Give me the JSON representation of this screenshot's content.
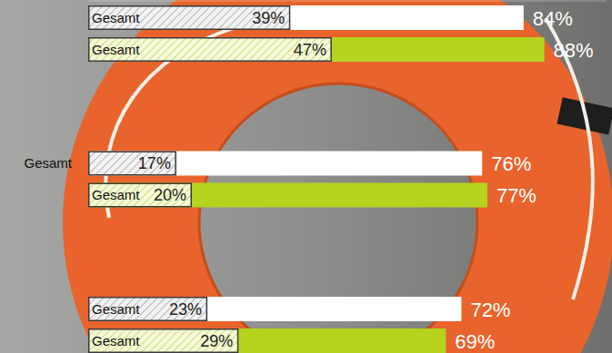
{
  "chart_data": {
    "type": "bar",
    "orientation": "horizontal",
    "data_labels": true,
    "tick_labels": false,
    "grid": false,
    "categories": [
      null,
      null,
      null
    ],
    "xlim": [
      0,
      100
    ],
    "series": [
      {
        "name": "Gesamt",
        "color": "#ffffff",
        "values": [
          84,
          76,
          72
        ],
        "value_labels": [
          "84%",
          "76%",
          "72%"
        ],
        "inner_values": [
          39,
          17,
          23
        ],
        "inner_value_labels": [
          "39%",
          "17%",
          "23%"
        ]
      },
      {
        "name": "Gesamt",
        "color": "#b5d31f",
        "values": [
          88,
          77,
          69
        ],
        "value_labels": [
          "88%",
          "77%",
          "69%"
        ],
        "inner_values": [
          47,
          20,
          29
        ],
        "inner_value_labels": [
          "47%",
          "20%",
          "29%"
        ]
      }
    ]
  }
}
